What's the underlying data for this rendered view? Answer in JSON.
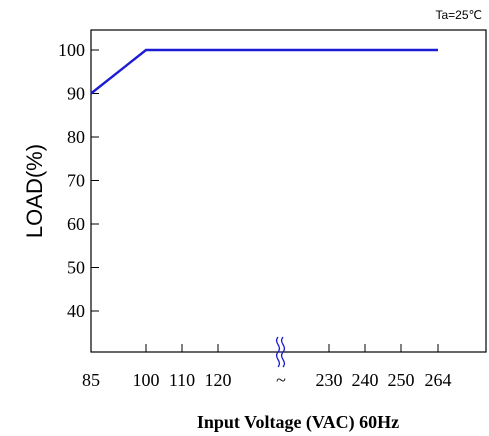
{
  "chart_data": {
    "type": "line",
    "title": "",
    "condition_label": "Ta=25℃",
    "ylabel": "LOAD(%)",
    "xlabel": "Input Voltage (VAC) 60Hz",
    "axis_break_symbol": "~",
    "x_ticks": [
      "85",
      "100",
      "110",
      "120",
      "~",
      "230",
      "240",
      "250",
      "264"
    ],
    "y_ticks": [
      "100",
      "90",
      "80",
      "70",
      "60",
      "50",
      "40"
    ],
    "ylim": [
      30,
      105
    ],
    "grid": false,
    "series": [
      {
        "color": "#1c1cd6",
        "points": [
          {
            "x": "85",
            "y": 90
          },
          {
            "x": "100",
            "y": 100
          },
          {
            "x": "264",
            "y": 100
          }
        ]
      }
    ]
  }
}
